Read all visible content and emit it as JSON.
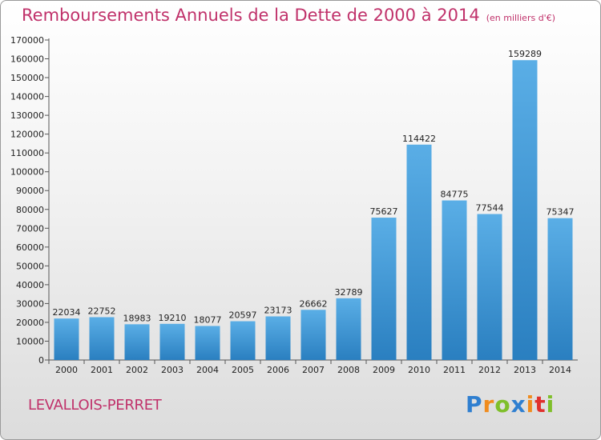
{
  "chart_data": {
    "type": "bar",
    "title": "Remboursements Annuels de la Dette de 2000 à 2014",
    "subtitle": "(en milliers d'€)",
    "categories": [
      "2000",
      "2001",
      "2002",
      "2003",
      "2004",
      "2005",
      "2006",
      "2007",
      "2008",
      "2009",
      "2010",
      "2011",
      "2012",
      "2013",
      "2014"
    ],
    "values": [
      22034,
      22752,
      18983,
      19210,
      18077,
      20597,
      23173,
      26662,
      32789,
      75627,
      114422,
      84775,
      77544,
      159289,
      75347
    ],
    "ylim": [
      0,
      170000
    ],
    "yticks": [
      0,
      10000,
      20000,
      30000,
      40000,
      50000,
      60000,
      70000,
      80000,
      90000,
      100000,
      110000,
      120000,
      130000,
      140000,
      150000,
      160000,
      170000
    ],
    "grid": false,
    "bar_color_top": "#5aaee6",
    "bar_color_bottom": "#2a7fc0"
  },
  "footer": {
    "city": "LEVALLOIS-PERRET",
    "logo_letters": [
      "P",
      "r",
      "o",
      "x",
      "i",
      "t",
      "i"
    ],
    "logo_colors": [
      "#2f7fd0",
      "#f08c1e",
      "#7fbf2a",
      "#2f7fd0",
      "#f08c1e",
      "#e0312d",
      "#7fbf2a"
    ]
  }
}
